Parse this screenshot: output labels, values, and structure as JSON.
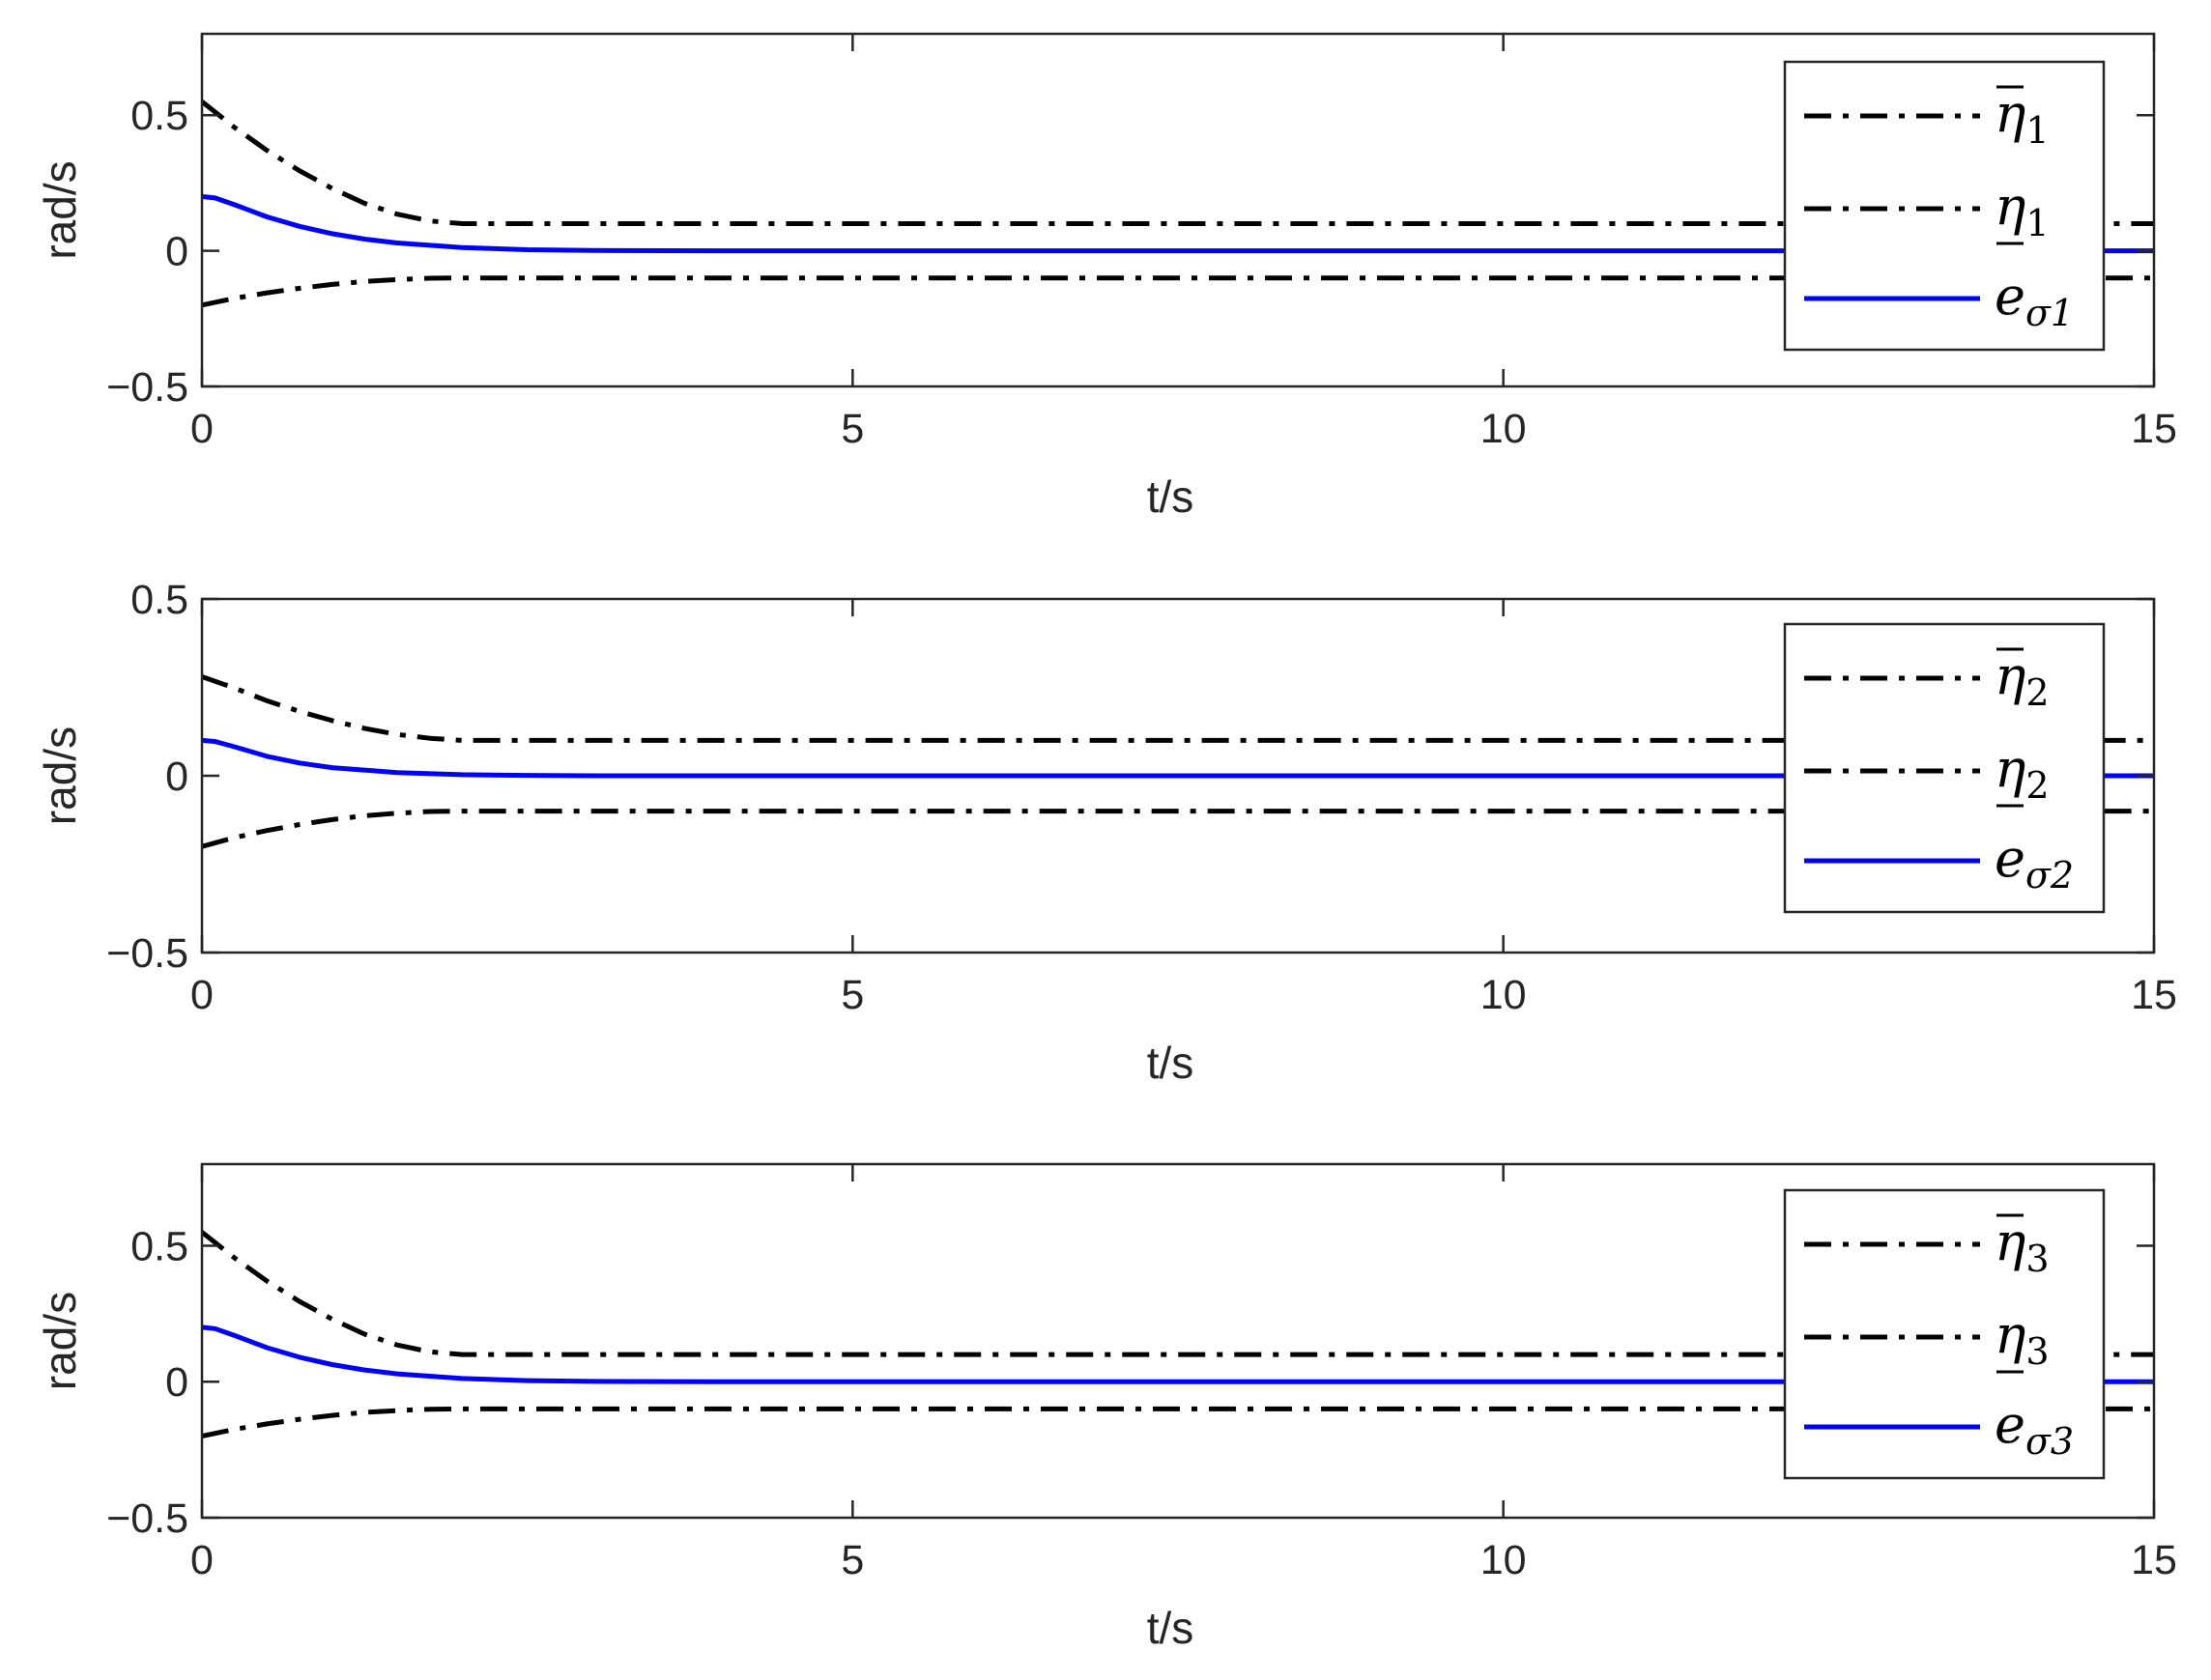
{
  "chart_data": [
    {
      "type": "line",
      "xlabel": "t/s",
      "ylabel": "rad/s",
      "xlim": [
        0,
        15
      ],
      "ylim": [
        -0.5,
        0.8
      ],
      "xticks": [
        0,
        5,
        10,
        15
      ],
      "xtick_labels": [
        "0",
        "5",
        "10",
        "15"
      ],
      "yticks": [
        -0.5,
        0,
        0.5
      ],
      "ytick_labels": [
        "−0.5",
        "0",
        "0.5"
      ],
      "grid": false,
      "legend_position": "top-right",
      "series": [
        {
          "name": "η̄ 1",
          "legend_symbol": "η",
          "legend_index": "1",
          "legend_mark": "over",
          "style": "dashdot",
          "color": "#000000",
          "x": [
            0,
            0.25,
            0.5,
            0.75,
            1,
            1.25,
            1.5,
            1.75,
            2,
            3,
            5,
            10,
            15
          ],
          "y": [
            0.55,
            0.455,
            0.37,
            0.295,
            0.23,
            0.175,
            0.135,
            0.11,
            0.1,
            0.1,
            0.1,
            0.1,
            0.1
          ]
        },
        {
          "name": "η 1 (lower)",
          "legend_symbol": "η",
          "legend_index": "1",
          "legend_mark": "under",
          "style": "dashdot",
          "color": "#000000",
          "x": [
            0,
            0.25,
            0.5,
            0.75,
            1,
            1.25,
            1.5,
            1.75,
            2,
            3,
            5,
            10,
            15
          ],
          "y": [
            -0.2,
            -0.175,
            -0.155,
            -0.138,
            -0.124,
            -0.113,
            -0.106,
            -0.101,
            -0.1,
            -0.1,
            -0.1,
            -0.1,
            -0.1
          ]
        },
        {
          "name": "eσ1",
          "legend_symbol": "e",
          "legend_index": "σ1",
          "legend_mark": "none",
          "style": "solid",
          "color": "#0000ff",
          "x": [
            0,
            0.1,
            0.25,
            0.5,
            0.75,
            1,
            1.25,
            1.5,
            2,
            2.5,
            3,
            4,
            5,
            10,
            15
          ],
          "y": [
            0.2,
            0.195,
            0.17,
            0.125,
            0.09,
            0.063,
            0.043,
            0.029,
            0.012,
            0.004,
            0.001,
            0,
            0,
            0,
            0
          ]
        }
      ]
    },
    {
      "type": "line",
      "xlabel": "t/s",
      "ylabel": "rad/s",
      "xlim": [
        0,
        15
      ],
      "ylim": [
        -0.5,
        0.5
      ],
      "xticks": [
        0,
        5,
        10,
        15
      ],
      "xtick_labels": [
        "0",
        "5",
        "10",
        "15"
      ],
      "yticks": [
        -0.5,
        0,
        0.5
      ],
      "ytick_labels": [
        "−0.5",
        "0",
        "0.5"
      ],
      "grid": false,
      "legend_position": "right",
      "series": [
        {
          "name": "η̄ 2",
          "legend_symbol": "η",
          "legend_index": "2",
          "legend_mark": "over",
          "style": "dashdot",
          "color": "#000000",
          "x": [
            0,
            0.25,
            0.5,
            0.75,
            1,
            1.25,
            1.5,
            1.75,
            2,
            3,
            5,
            10,
            15
          ],
          "y": [
            0.28,
            0.248,
            0.212,
            0.182,
            0.156,
            0.134,
            0.117,
            0.106,
            0.1,
            0.1,
            0.1,
            0.1,
            0.1
          ]
        },
        {
          "name": "η 2 (lower)",
          "legend_symbol": "η",
          "legend_index": "2",
          "legend_mark": "under",
          "style": "dashdot",
          "color": "#000000",
          "x": [
            0,
            0.25,
            0.5,
            0.75,
            1,
            1.25,
            1.5,
            1.75,
            2,
            3,
            5,
            10,
            15
          ],
          "y": [
            -0.2,
            -0.175,
            -0.155,
            -0.138,
            -0.124,
            -0.113,
            -0.106,
            -0.101,
            -0.1,
            -0.1,
            -0.1,
            -0.1,
            -0.1
          ]
        },
        {
          "name": "eσ2",
          "legend_symbol": "e",
          "legend_index": "σ2",
          "legend_mark": "none",
          "style": "solid",
          "color": "#0000ff",
          "x": [
            0,
            0.1,
            0.25,
            0.5,
            0.75,
            1,
            1.5,
            2,
            2.5,
            3,
            4,
            5,
            10,
            15
          ],
          "y": [
            0.1,
            0.097,
            0.082,
            0.055,
            0.036,
            0.023,
            0.009,
            0.003,
            0.001,
            0,
            0,
            0,
            0,
            0
          ]
        }
      ]
    },
    {
      "type": "line",
      "xlabel": "t/s",
      "ylabel": "rad/s",
      "xlim": [
        0,
        15
      ],
      "ylim": [
        -0.5,
        0.8
      ],
      "xticks": [
        0,
        5,
        10,
        15
      ],
      "xtick_labels": [
        "0",
        "5",
        "10",
        "15"
      ],
      "yticks": [
        -0.5,
        0,
        0.5
      ],
      "ytick_labels": [
        "−0.5",
        "0",
        "0.5"
      ],
      "grid": false,
      "legend_position": "top-right",
      "series": [
        {
          "name": "η̄ 3",
          "legend_symbol": "η",
          "legend_index": "3",
          "legend_mark": "over",
          "style": "dashdot",
          "color": "#000000",
          "x": [
            0,
            0.25,
            0.5,
            0.75,
            1,
            1.25,
            1.5,
            1.75,
            2,
            3,
            5,
            10,
            15
          ],
          "y": [
            0.55,
            0.455,
            0.37,
            0.295,
            0.23,
            0.175,
            0.135,
            0.11,
            0.1,
            0.1,
            0.1,
            0.1,
            0.1
          ]
        },
        {
          "name": "η 3 (lower)",
          "legend_symbol": "η",
          "legend_index": "3",
          "legend_mark": "under",
          "style": "dashdot",
          "color": "#000000",
          "x": [
            0,
            0.25,
            0.5,
            0.75,
            1,
            1.25,
            1.5,
            1.75,
            2,
            3,
            5,
            10,
            15
          ],
          "y": [
            -0.2,
            -0.175,
            -0.155,
            -0.138,
            -0.124,
            -0.113,
            -0.106,
            -0.101,
            -0.1,
            -0.1,
            -0.1,
            -0.1,
            -0.1
          ]
        },
        {
          "name": "eσ3",
          "legend_symbol": "e",
          "legend_index": "σ3",
          "legend_mark": "none",
          "style": "solid",
          "color": "#0000ff",
          "x": [
            0,
            0.1,
            0.25,
            0.5,
            0.75,
            1,
            1.25,
            1.5,
            2,
            2.5,
            3,
            4,
            5,
            10,
            15
          ],
          "y": [
            0.2,
            0.195,
            0.17,
            0.125,
            0.09,
            0.063,
            0.043,
            0.029,
            0.012,
            0.004,
            0.001,
            0,
            0,
            0,
            0
          ]
        }
      ]
    }
  ]
}
